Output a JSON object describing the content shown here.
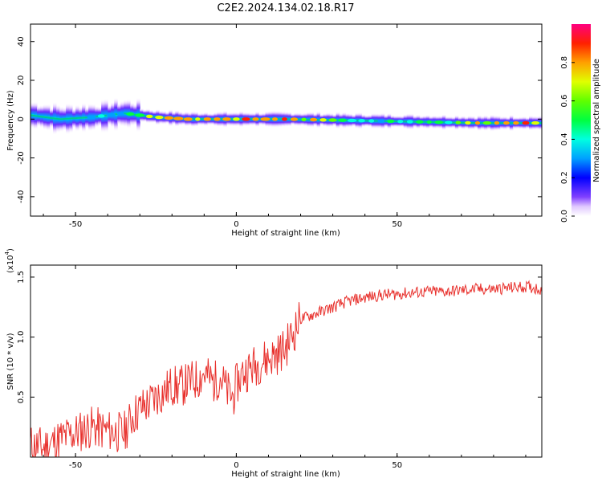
{
  "title": "C2E2.2024.134.02.18.R17",
  "chart_data": [
    {
      "type": "heatmap",
      "xlabel": "Height of straight line (km)",
      "ylabel": "Frequency (Hz)",
      "xlim": [
        -64,
        95
      ],
      "ylim": [
        -50,
        49
      ],
      "xticks": [
        -50,
        0,
        50
      ],
      "yticks": [
        -40,
        -20,
        0,
        20,
        40
      ],
      "grid": false,
      "colorbar": {
        "label": "Normalized spectral amplitude",
        "range": [
          0,
          1
        ],
        "ticks": [
          "0.0",
          "0.2",
          "0.4",
          "0.6",
          "0.8"
        ]
      },
      "ridge_frequency_hz": {
        "x": [
          -64,
          -55,
          -45,
          -35,
          -25,
          -15,
          -5,
          5,
          15,
          30,
          45,
          60,
          75,
          85,
          93
        ],
        "y": [
          2,
          0,
          1,
          3,
          1,
          0,
          0,
          0,
          0,
          -0.5,
          -1,
          -1.5,
          -2,
          -2,
          -2
        ]
      },
      "peak_amplitude": {
        "x": [
          -64,
          -55,
          -45,
          -35,
          -25,
          -15,
          -5,
          5,
          15,
          30,
          45,
          60,
          75,
          85,
          93
        ],
        "y": [
          0.4,
          0.45,
          0.5,
          0.55,
          0.95,
          1.0,
          1.0,
          1.0,
          1.0,
          0.7,
          0.55,
          0.6,
          0.85,
          1.0,
          0.95
        ]
      }
    },
    {
      "type": "line",
      "xlabel": "Height of straight line (km)",
      "ylabel": "SNR (10 * v/v)",
      "y_multiplier": "(x10",
      "y_multiplier_exp": "4",
      "y_multiplier_close": ")",
      "xlim": [
        -64,
        95
      ],
      "ylim": [
        0,
        1.6
      ],
      "xticks": [
        -50,
        0,
        50
      ],
      "yticks": [
        "0.5",
        "1.0",
        "1.5"
      ],
      "grid": false,
      "series": [
        {
          "color": "#e8302c",
          "x": [
            -64,
            -60,
            -55,
            -50,
            -45,
            -40,
            -35,
            -32,
            -30,
            -27,
            -25,
            -22,
            -20,
            -18,
            -15,
            -12,
            -10,
            -7,
            -5,
            -3,
            -1,
            0,
            2,
            5,
            8,
            10,
            12,
            15,
            18,
            20,
            25,
            30,
            35,
            40,
            45,
            50,
            55,
            60,
            65,
            70,
            75,
            80,
            85,
            90,
            95
          ],
          "y": [
            0.1,
            0.08,
            0.15,
            0.2,
            0.25,
            0.22,
            0.2,
            0.35,
            0.4,
            0.45,
            0.5,
            0.55,
            0.6,
            0.58,
            0.62,
            0.65,
            0.7,
            0.62,
            0.68,
            0.55,
            0.5,
            0.6,
            0.7,
            0.75,
            0.8,
            0.82,
            0.85,
            0.9,
            1.05,
            1.15,
            1.2,
            1.25,
            1.3,
            1.33,
            1.35,
            1.36,
            1.37,
            1.38,
            1.38,
            1.39,
            1.4,
            1.4,
            1.41,
            1.42,
            1.4
          ]
        }
      ]
    }
  ]
}
